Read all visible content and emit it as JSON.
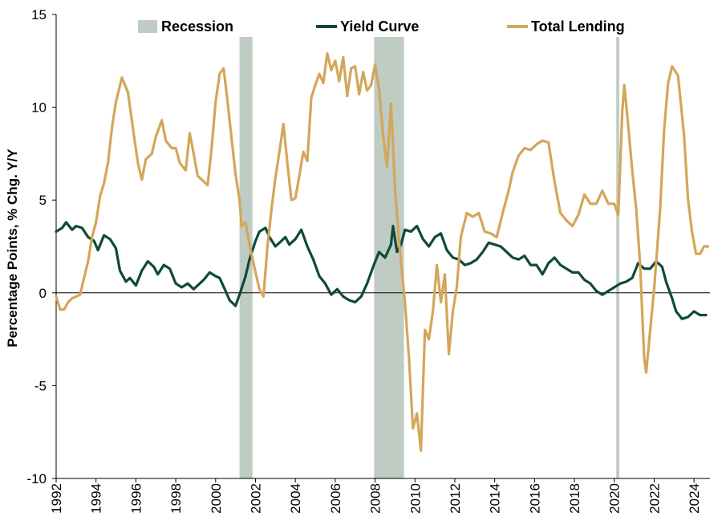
{
  "chart_data": {
    "type": "line",
    "ylabel": "Percentage Points,  % Chg. Y/Y",
    "xlabel": "",
    "ylim": [
      -10,
      15
    ],
    "yticks": [
      -10,
      -5,
      0,
      5,
      10,
      15
    ],
    "xlim": [
      1992,
      2024.8
    ],
    "xticks": [
      1992,
      1994,
      1996,
      1998,
      2000,
      2002,
      2004,
      2006,
      2008,
      2010,
      2012,
      2014,
      2016,
      2018,
      2020,
      2022,
      2024
    ],
    "grid": false,
    "legend_placement": "top",
    "recessions": {
      "name": "Recession",
      "color": "#bfccc4",
      "periods": [
        [
          2001.2,
          2001.85
        ],
        [
          2007.95,
          2009.45
        ],
        [
          2020.1,
          2020.25
        ]
      ]
    },
    "series": [
      {
        "name": "Yield Curve",
        "color": "#0f4a36",
        "points": [
          [
            1992.0,
            3.3
          ],
          [
            1992.3,
            3.5
          ],
          [
            1992.5,
            3.8
          ],
          [
            1992.8,
            3.4
          ],
          [
            1993.0,
            3.6
          ],
          [
            1993.3,
            3.5
          ],
          [
            1993.6,
            3.0
          ],
          [
            1993.9,
            2.8
          ],
          [
            1994.1,
            2.3
          ],
          [
            1994.4,
            3.1
          ],
          [
            1994.7,
            2.9
          ],
          [
            1995.0,
            2.4
          ],
          [
            1995.2,
            1.2
          ],
          [
            1995.5,
            0.6
          ],
          [
            1995.7,
            0.8
          ],
          [
            1996.0,
            0.4
          ],
          [
            1996.3,
            1.2
          ],
          [
            1996.6,
            1.7
          ],
          [
            1996.9,
            1.4
          ],
          [
            1997.1,
            1.0
          ],
          [
            1997.4,
            1.5
          ],
          [
            1997.7,
            1.3
          ],
          [
            1998.0,
            0.5
          ],
          [
            1998.3,
            0.3
          ],
          [
            1998.6,
            0.5
          ],
          [
            1998.9,
            0.2
          ],
          [
            1999.1,
            0.4
          ],
          [
            1999.4,
            0.7
          ],
          [
            1999.7,
            1.1
          ],
          [
            2000.0,
            0.9
          ],
          [
            2000.2,
            0.8
          ],
          [
            2000.5,
            0.1
          ],
          [
            2000.7,
            -0.4
          ],
          [
            2001.0,
            -0.7
          ],
          [
            2001.2,
            -0.1
          ],
          [
            2001.5,
            0.9
          ],
          [
            2001.7,
            1.8
          ],
          [
            2002.0,
            2.8
          ],
          [
            2002.2,
            3.3
          ],
          [
            2002.5,
            3.5
          ],
          [
            2002.7,
            3.0
          ],
          [
            2003.0,
            2.5
          ],
          [
            2003.2,
            2.7
          ],
          [
            2003.5,
            3.0
          ],
          [
            2003.7,
            2.6
          ],
          [
            2004.0,
            2.9
          ],
          [
            2004.3,
            3.4
          ],
          [
            2004.6,
            2.5
          ],
          [
            2004.9,
            1.8
          ],
          [
            2005.2,
            0.9
          ],
          [
            2005.5,
            0.5
          ],
          [
            2005.8,
            -0.1
          ],
          [
            2006.1,
            0.2
          ],
          [
            2006.4,
            -0.2
          ],
          [
            2006.7,
            -0.4
          ],
          [
            2007.0,
            -0.5
          ],
          [
            2007.3,
            -0.2
          ],
          [
            2007.6,
            0.5
          ],
          [
            2007.9,
            1.4
          ],
          [
            2008.2,
            2.2
          ],
          [
            2008.5,
            1.9
          ],
          [
            2008.8,
            2.6
          ],
          [
            2008.9,
            3.6
          ],
          [
            2009.1,
            2.2
          ],
          [
            2009.3,
            2.6
          ],
          [
            2009.5,
            3.4
          ],
          [
            2009.8,
            3.3
          ],
          [
            2010.1,
            3.6
          ],
          [
            2010.4,
            2.9
          ],
          [
            2010.7,
            2.5
          ],
          [
            2011.0,
            3.0
          ],
          [
            2011.3,
            3.2
          ],
          [
            2011.6,
            2.3
          ],
          [
            2011.9,
            1.9
          ],
          [
            2012.2,
            1.8
          ],
          [
            2012.5,
            1.5
          ],
          [
            2012.8,
            1.6
          ],
          [
            2013.1,
            1.8
          ],
          [
            2013.4,
            2.2
          ],
          [
            2013.7,
            2.7
          ],
          [
            2014.0,
            2.6
          ],
          [
            2014.3,
            2.5
          ],
          [
            2014.6,
            2.2
          ],
          [
            2014.9,
            1.9
          ],
          [
            2015.2,
            1.8
          ],
          [
            2015.5,
            2.0
          ],
          [
            2015.8,
            1.5
          ],
          [
            2016.1,
            1.5
          ],
          [
            2016.4,
            1.0
          ],
          [
            2016.7,
            1.6
          ],
          [
            2017.0,
            1.9
          ],
          [
            2017.3,
            1.5
          ],
          [
            2017.6,
            1.3
          ],
          [
            2017.9,
            1.1
          ],
          [
            2018.2,
            1.1
          ],
          [
            2018.5,
            0.7
          ],
          [
            2018.8,
            0.5
          ],
          [
            2019.1,
            0.1
          ],
          [
            2019.4,
            -0.1
          ],
          [
            2019.7,
            0.1
          ],
          [
            2020.0,
            0.3
          ],
          [
            2020.3,
            0.5
          ],
          [
            2020.6,
            0.6
          ],
          [
            2020.9,
            0.8
          ],
          [
            2021.2,
            1.6
          ],
          [
            2021.5,
            1.3
          ],
          [
            2021.8,
            1.3
          ],
          [
            2022.1,
            1.7
          ],
          [
            2022.4,
            1.4
          ],
          [
            2022.6,
            0.6
          ],
          [
            2022.9,
            -0.3
          ],
          [
            2023.1,
            -1.0
          ],
          [
            2023.4,
            -1.4
          ],
          [
            2023.7,
            -1.3
          ],
          [
            2024.0,
            -1.0
          ],
          [
            2024.3,
            -1.2
          ],
          [
            2024.6,
            -1.2
          ]
        ]
      },
      {
        "name": "Total Lending",
        "color": "#d4a65a",
        "points": [
          [
            1992.0,
            -0.2
          ],
          [
            1992.2,
            -0.9
          ],
          [
            1992.4,
            -0.9
          ],
          [
            1992.6,
            -0.5
          ],
          [
            1992.8,
            -0.3
          ],
          [
            1993.0,
            -0.2
          ],
          [
            1993.2,
            -0.1
          ],
          [
            1993.4,
            0.8
          ],
          [
            1993.6,
            1.7
          ],
          [
            1993.8,
            3.0
          ],
          [
            1994.0,
            3.8
          ],
          [
            1994.2,
            5.2
          ],
          [
            1994.4,
            5.9
          ],
          [
            1994.6,
            7.0
          ],
          [
            1994.8,
            8.9
          ],
          [
            1995.0,
            10.3
          ],
          [
            1995.3,
            11.6
          ],
          [
            1995.6,
            10.8
          ],
          [
            1995.9,
            8.5
          ],
          [
            1996.1,
            7.0
          ],
          [
            1996.3,
            6.1
          ],
          [
            1996.5,
            7.2
          ],
          [
            1996.8,
            7.5
          ],
          [
            1997.0,
            8.4
          ],
          [
            1997.3,
            9.3
          ],
          [
            1997.5,
            8.2
          ],
          [
            1997.8,
            7.8
          ],
          [
            1998.0,
            7.8
          ],
          [
            1998.2,
            7.0
          ],
          [
            1998.5,
            6.6
          ],
          [
            1998.7,
            8.6
          ],
          [
            1998.9,
            7.5
          ],
          [
            1999.1,
            6.3
          ],
          [
            1999.4,
            6.0
          ],
          [
            1999.6,
            5.8
          ],
          [
            1999.8,
            7.8
          ],
          [
            2000.0,
            10.3
          ],
          [
            2000.2,
            11.8
          ],
          [
            2000.4,
            12.1
          ],
          [
            2000.6,
            10.3
          ],
          [
            2000.8,
            8.3
          ],
          [
            2001.0,
            6.4
          ],
          [
            2001.2,
            5.0
          ],
          [
            2001.3,
            3.6
          ],
          [
            2001.5,
            3.8
          ],
          [
            2001.7,
            2.6
          ],
          [
            2002.0,
            1.1
          ],
          [
            2002.2,
            0.2
          ],
          [
            2002.4,
            -0.2
          ],
          [
            2002.6,
            2.5
          ],
          [
            2002.8,
            4.5
          ],
          [
            2003.0,
            6.2
          ],
          [
            2003.2,
            7.6
          ],
          [
            2003.4,
            9.1
          ],
          [
            2003.6,
            7.0
          ],
          [
            2003.8,
            5.0
          ],
          [
            2004.0,
            5.1
          ],
          [
            2004.2,
            6.3
          ],
          [
            2004.4,
            7.6
          ],
          [
            2004.6,
            7.1
          ],
          [
            2004.8,
            10.5
          ],
          [
            2005.0,
            11.2
          ],
          [
            2005.2,
            11.8
          ],
          [
            2005.4,
            11.3
          ],
          [
            2005.6,
            12.9
          ],
          [
            2005.8,
            12.0
          ],
          [
            2006.0,
            12.5
          ],
          [
            2006.2,
            11.4
          ],
          [
            2006.4,
            12.7
          ],
          [
            2006.6,
            10.6
          ],
          [
            2006.8,
            12.1
          ],
          [
            2007.0,
            12.2
          ],
          [
            2007.2,
            10.7
          ],
          [
            2007.4,
            11.9
          ],
          [
            2007.6,
            10.9
          ],
          [
            2007.8,
            11.2
          ],
          [
            2008.0,
            12.3
          ],
          [
            2008.2,
            11.0
          ],
          [
            2008.4,
            8.5
          ],
          [
            2008.6,
            6.8
          ],
          [
            2008.8,
            10.2
          ],
          [
            2009.0,
            5.6
          ],
          [
            2009.2,
            2.8
          ],
          [
            2009.5,
            -0.5
          ],
          [
            2009.7,
            -3.5
          ],
          [
            2009.9,
            -7.3
          ],
          [
            2010.1,
            -6.5
          ],
          [
            2010.3,
            -8.5
          ],
          [
            2010.5,
            -2.0
          ],
          [
            2010.7,
            -2.5
          ],
          [
            2010.9,
            -1.0
          ],
          [
            2011.1,
            1.5
          ],
          [
            2011.3,
            -0.5
          ],
          [
            2011.5,
            1.0
          ],
          [
            2011.7,
            -3.3
          ],
          [
            2011.9,
            -1.0
          ],
          [
            2012.1,
            0.3
          ],
          [
            2012.3,
            3.0
          ],
          [
            2012.6,
            4.3
          ],
          [
            2012.9,
            4.1
          ],
          [
            2013.2,
            4.3
          ],
          [
            2013.5,
            3.3
          ],
          [
            2013.8,
            3.2
          ],
          [
            2014.1,
            3.0
          ],
          [
            2014.4,
            4.3
          ],
          [
            2014.7,
            5.5
          ],
          [
            2014.9,
            6.5
          ],
          [
            2015.2,
            7.4
          ],
          [
            2015.5,
            7.8
          ],
          [
            2015.8,
            7.7
          ],
          [
            2016.1,
            8.0
          ],
          [
            2016.4,
            8.2
          ],
          [
            2016.7,
            8.1
          ],
          [
            2017.0,
            6.0
          ],
          [
            2017.3,
            4.3
          ],
          [
            2017.6,
            3.9
          ],
          [
            2017.9,
            3.6
          ],
          [
            2018.2,
            4.2
          ],
          [
            2018.5,
            5.3
          ],
          [
            2018.8,
            4.8
          ],
          [
            2019.1,
            4.8
          ],
          [
            2019.4,
            5.5
          ],
          [
            2019.7,
            4.8
          ],
          [
            2020.0,
            4.8
          ],
          [
            2020.2,
            4.2
          ],
          [
            2020.4,
            9.8
          ],
          [
            2020.5,
            11.2
          ],
          [
            2020.7,
            9.0
          ],
          [
            2020.9,
            6.6
          ],
          [
            2021.1,
            4.5
          ],
          [
            2021.3,
            1.5
          ],
          [
            2021.5,
            -3.5
          ],
          [
            2021.6,
            -4.3
          ],
          [
            2021.8,
            -2.0
          ],
          [
            2022.0,
            0.2
          ],
          [
            2022.3,
            4.5
          ],
          [
            2022.5,
            8.8
          ],
          [
            2022.7,
            11.3
          ],
          [
            2022.9,
            12.2
          ],
          [
            2023.2,
            11.7
          ],
          [
            2023.5,
            8.5
          ],
          [
            2023.7,
            5.0
          ],
          [
            2023.9,
            3.3
          ],
          [
            2024.1,
            2.1
          ],
          [
            2024.3,
            2.1
          ],
          [
            2024.5,
            2.5
          ],
          [
            2024.7,
            2.5
          ]
        ]
      }
    ]
  }
}
